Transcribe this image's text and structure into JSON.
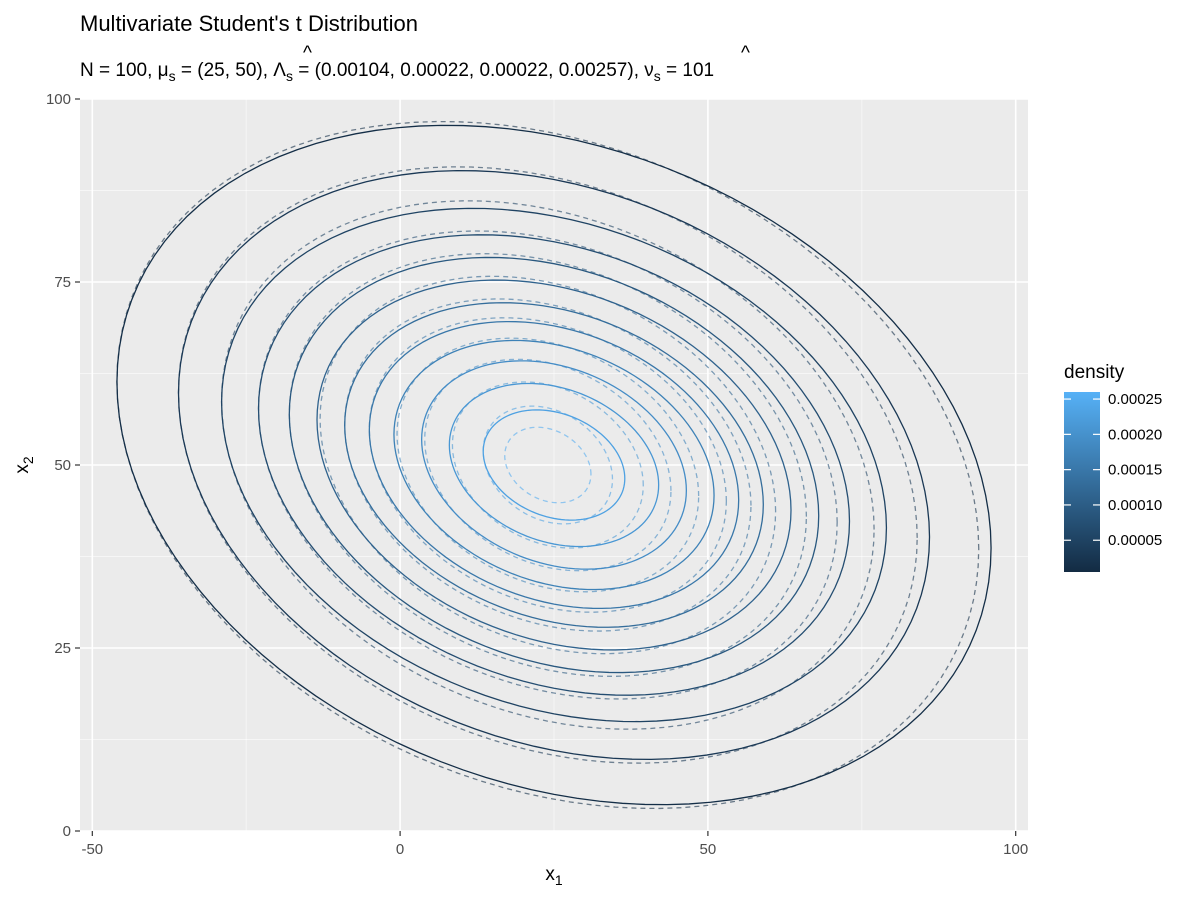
{
  "chart_data": {
    "type": "contour",
    "title": "Multivariate Student's t Distribution",
    "subtitle": {
      "n_label": "N = 100, ",
      "mu_label": "μ",
      "mu_sub": "s",
      "mu_value": " = (25, 50), ",
      "lambda_label": "Λ",
      "lambda_sub": "s",
      "lambda_value": " = (0.00104, 0.00022, 0.00022, 0.00257), ",
      "nu_label": "ν",
      "nu_sub": "s",
      "nu_value": " = 101"
    },
    "xlabel": "x",
    "xlabel_sub": "1",
    "ylabel": "x",
    "ylabel_sub": "2",
    "xlim": [
      -52,
      102
    ],
    "ylim": [
      0,
      100
    ],
    "x_ticks": [
      -50,
      0,
      50,
      100
    ],
    "x_tick_labels": [
      "-50",
      "0",
      "50",
      "100"
    ],
    "y_ticks": [
      0,
      25,
      50,
      75,
      100
    ],
    "y_tick_labels": [
      "0",
      "25",
      "50",
      "75",
      "100"
    ],
    "grid": true,
    "solid_contours": {
      "center": [
        25,
        50
      ],
      "levels": [
        {
          "density": 1e-05,
          "x_half_extent": 71,
          "y_half_extent": 45
        },
        {
          "density": 3e-05,
          "x_half_extent": 61,
          "y_half_extent": 39
        },
        {
          "density": 5e-05,
          "x_half_extent": 54,
          "y_half_extent": 34
        },
        {
          "density": 7e-05,
          "x_half_extent": 48,
          "y_half_extent": 30.5
        },
        {
          "density": 9e-05,
          "x_half_extent": 43,
          "y_half_extent": 27.5
        },
        {
          "density": 0.00011,
          "x_half_extent": 38.5,
          "y_half_extent": 24.5
        },
        {
          "density": 0.00013,
          "x_half_extent": 34,
          "y_half_extent": 21.5
        },
        {
          "density": 0.00015,
          "x_half_extent": 30,
          "y_half_extent": 19
        },
        {
          "density": 0.00017,
          "x_half_extent": 26,
          "y_half_extent": 16.5
        },
        {
          "density": 0.00019,
          "x_half_extent": 21.5,
          "y_half_extent": 13.8
        },
        {
          "density": 0.00021,
          "x_half_extent": 17,
          "y_half_extent": 10.8
        },
        {
          "density": 0.00023,
          "x_half_extent": 11.5,
          "y_half_extent": 7.3
        }
      ]
    },
    "dashed_contours": {
      "center": [
        24,
        50
      ],
      "levels": [
        {
          "density": 1e-05,
          "x_half_extent": 70,
          "y_half_extent": 45.5
        },
        {
          "density": 3e-05,
          "x_half_extent": 60,
          "y_half_extent": 39.5
        },
        {
          "density": 5e-05,
          "x_half_extent": 53,
          "y_half_extent": 35
        },
        {
          "density": 7e-05,
          "x_half_extent": 47,
          "y_half_extent": 31
        },
        {
          "density": 9e-05,
          "x_half_extent": 42,
          "y_half_extent": 28
        },
        {
          "density": 0.00011,
          "x_half_extent": 37,
          "y_half_extent": 25
        },
        {
          "density": 0.00013,
          "x_half_extent": 33,
          "y_half_extent": 22
        },
        {
          "density": 0.00015,
          "x_half_extent": 29,
          "y_half_extent": 19.5
        },
        {
          "density": 0.00017,
          "x_half_extent": 24.5,
          "y_half_extent": 16.8
        },
        {
          "density": 0.00019,
          "x_half_extent": 20,
          "y_half_extent": 14
        },
        {
          "density": 0.00021,
          "x_half_extent": 15.5,
          "y_half_extent": 11
        },
        {
          "density": 0.00023,
          "x_half_extent": 10.5,
          "y_half_extent": 7.8
        },
        {
          "density": 0.00025,
          "x_half_extent": 7,
          "y_half_extent": 5
        }
      ]
    },
    "correlation_tilt": -0.28,
    "legend": {
      "title": "density",
      "position": "right",
      "range": [
        5e-06,
        0.00026
      ],
      "breaks": [
        0.00025,
        0.0002,
        0.00015,
        0.0001,
        5e-05
      ],
      "labels": [
        "0.00025",
        "0.00020",
        "0.00015",
        "0.00010",
        "0.00005"
      ],
      "low_color": "#132B43",
      "high_color": "#56B1F7"
    },
    "colors": {
      "panel_bg": "#EBEBEB",
      "grid_major": "#FFFFFF",
      "dashed_stroke_opacity": 0.6
    }
  }
}
